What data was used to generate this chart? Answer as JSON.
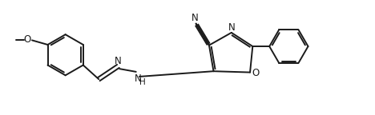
{
  "background_color": "#ffffff",
  "line_color": "#1a1a1a",
  "line_width": 1.4,
  "figsize": [
    4.68,
    1.44
  ],
  "dpi": 100,
  "xlim": [
    0,
    10
  ],
  "ylim": [
    0,
    3.1
  ]
}
